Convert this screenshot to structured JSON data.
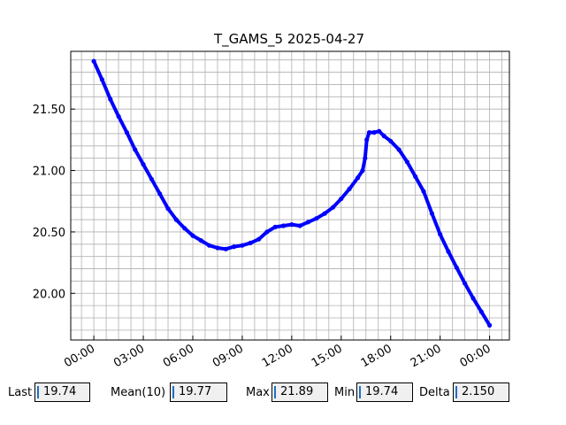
{
  "chart_data": {
    "type": "line",
    "title": "T_GAMS_5 2025-04-27",
    "xlabel": "",
    "ylabel": "",
    "x_unit": "hours",
    "xlim": [
      -1.4,
      25.2
    ],
    "ylim": [
      19.62,
      21.97
    ],
    "x_ticks": [
      0,
      3,
      6,
      9,
      12,
      15,
      18,
      21,
      24
    ],
    "x_tick_labels": [
      "00:00",
      "03:00",
      "06:00",
      "09:00",
      "12:00",
      "15:00",
      "18:00",
      "21:00",
      "00:00"
    ],
    "y_ticks": [
      20.0,
      20.5,
      21.0,
      21.5
    ],
    "y_tick_labels": [
      "20.00",
      "20.50",
      "21.00",
      "21.50"
    ],
    "grid": true,
    "line_color": "#0000ff",
    "series": [
      {
        "x": [
          0.0,
          0.5,
          1.0,
          1.5,
          2.0,
          2.5,
          3.0,
          3.5,
          4.0,
          4.5,
          5.0,
          5.5,
          6.0,
          6.5,
          7.0,
          7.5,
          8.0,
          8.5,
          9.0,
          9.5,
          10.0,
          10.5,
          11.0,
          11.5,
          12.0,
          12.5,
          13.0,
          13.5,
          14.0,
          14.5,
          15.0,
          15.5,
          16.0,
          16.3,
          16.45,
          16.55,
          16.7,
          17.0,
          17.3,
          17.6,
          18.0,
          18.5,
          19.0,
          19.5,
          20.0,
          20.5,
          21.0,
          21.5,
          22.0,
          22.5,
          23.0,
          23.5,
          24.0
        ],
        "y": [
          21.89,
          21.74,
          21.58,
          21.44,
          21.31,
          21.17,
          21.05,
          20.93,
          20.81,
          20.69,
          20.6,
          20.53,
          20.47,
          20.43,
          20.39,
          20.37,
          20.36,
          20.38,
          20.39,
          20.41,
          20.44,
          20.5,
          20.54,
          20.55,
          20.56,
          20.55,
          20.58,
          20.61,
          20.65,
          20.7,
          20.77,
          20.85,
          20.94,
          21.0,
          21.1,
          21.25,
          21.31,
          21.31,
          21.32,
          21.28,
          21.24,
          21.17,
          21.07,
          20.95,
          20.83,
          20.65,
          20.48,
          20.34,
          20.21,
          20.08,
          19.96,
          19.85,
          19.74
        ]
      }
    ]
  },
  "stats": {
    "last_label": "Last",
    "last_value": "19.74",
    "mean_label": "Mean(10)",
    "mean_value": "19.77",
    "max_label": "Max",
    "max_value": "21.89",
    "min_label": "Min",
    "min_value": "19.74",
    "delta_label": "Delta",
    "delta_value": "2.150"
  }
}
